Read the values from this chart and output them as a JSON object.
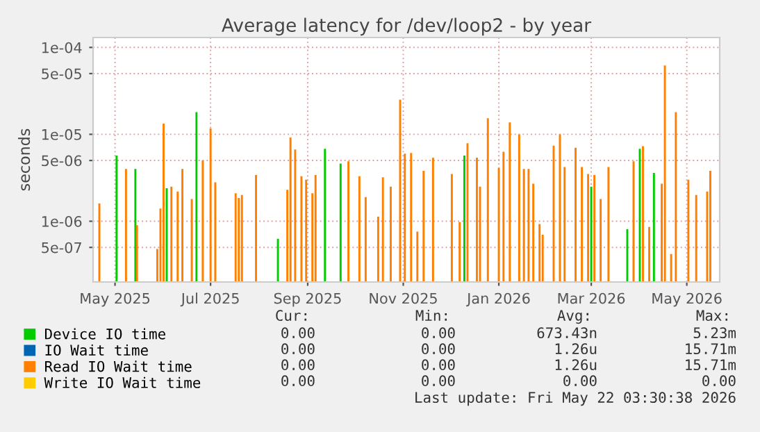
{
  "chart_data": {
    "type": "bar",
    "title": "Average latency for /dev/loop2 - by year",
    "ylabel": "seconds",
    "log": "y",
    "ylim": [
      2e-07,
      0.00013
    ],
    "yticks": [
      {
        "value": 0.0001,
        "label": "1e-04"
      },
      {
        "value": 5e-05,
        "label": "5e-05"
      },
      {
        "value": 1e-05,
        "label": "1e-05"
      },
      {
        "value": 5e-06,
        "label": "5e-06"
      },
      {
        "value": 1e-06,
        "label": "1e-06"
      },
      {
        "value": 5e-07,
        "label": "5e-07"
      }
    ],
    "xlim": [
      "2025-04-17",
      "2026-05-22"
    ],
    "xticks": [
      {
        "value": "2025-05-01",
        "label": "May 2025"
      },
      {
        "value": "2025-07-01",
        "label": "Jul 2025"
      },
      {
        "value": "2025-09-01",
        "label": "Sep 2025"
      },
      {
        "value": "2025-11-01",
        "label": "Nov 2025"
      },
      {
        "value": "2026-01-01",
        "label": "Jan 2026"
      },
      {
        "value": "2026-03-01",
        "label": "Mar 2026"
      },
      {
        "value": "2026-05-01",
        "label": "May 2026"
      }
    ],
    "grid": true,
    "legend": "bottom",
    "series": [
      {
        "name": "Device IO time",
        "color": "#00cc00",
        "x": [
          "2025-05-02",
          "2025-05-14",
          "2025-06-03",
          "2025-06-22",
          "2025-08-13",
          "2025-09-12",
          "2025-09-22",
          "2025-12-10",
          "2026-03-01",
          "2026-03-24",
          "2026-04-01",
          "2026-04-10"
        ],
        "values": [
          5.7e-06,
          4e-06,
          2.4e-06,
          1.8e-05,
          6.3e-07,
          6.8e-06,
          4.6e-06,
          5.7e-06,
          2.5e-06,
          8.1e-07,
          6.8e-06,
          3.6e-06
        ]
      },
      {
        "name": "IO Wait time",
        "color": "#0066b3"
      },
      {
        "name": "Read IO Wait time",
        "color": "#ff8000",
        "x": [
          "2025-04-21",
          "2025-05-08",
          "2025-05-15",
          "2025-05-28",
          "2025-05-30",
          "2025-06-01",
          "2025-06-06",
          "2025-06-10",
          "2025-06-13",
          "2025-06-19",
          "2025-06-26",
          "2025-07-01",
          "2025-07-04",
          "2025-07-17",
          "2025-07-19",
          "2025-07-21",
          "2025-07-30",
          "2025-08-19",
          "2025-08-21",
          "2025-08-24",
          "2025-08-28",
          "2025-08-31",
          "2025-09-04",
          "2025-09-06",
          "2025-09-27",
          "2025-10-04",
          "2025-10-08",
          "2025-10-16",
          "2025-10-19",
          "2025-10-24",
          "2025-10-30",
          "2025-11-02",
          "2025-11-06",
          "2025-11-10",
          "2025-11-14",
          "2025-11-20",
          "2025-12-02",
          "2025-12-07",
          "2025-12-12",
          "2025-12-18",
          "2025-12-20",
          "2025-12-25",
          "2026-01-01",
          "2026-01-04",
          "2026-01-08",
          "2026-01-14",
          "2026-01-17",
          "2026-01-20",
          "2026-01-23",
          "2026-01-27",
          "2026-01-29",
          "2026-02-05",
          "2026-02-09",
          "2026-02-12",
          "2026-02-19",
          "2026-02-23",
          "2026-02-27",
          "2026-03-03",
          "2026-03-07",
          "2026-03-12",
          "2026-03-28",
          "2026-04-03",
          "2026-04-07",
          "2026-04-15",
          "2026-04-17",
          "2026-04-21",
          "2026-04-24",
          "2026-05-02",
          "2026-05-07",
          "2026-05-14",
          "2026-05-16"
        ],
        "values": [
          1.6e-06,
          4e-06,
          9e-07,
          4.8e-07,
          1.4e-06,
          1.33e-05,
          2.5e-06,
          2.2e-06,
          4e-06,
          1.8e-06,
          5e-06,
          1.17e-05,
          2.8e-06,
          2.1e-06,
          1.85e-06,
          2e-06,
          3.4e-06,
          2.3e-06,
          9.2e-06,
          6.7e-06,
          3.3e-06,
          3e-06,
          2.1e-06,
          3.4e-06,
          4.9e-06,
          3.3e-06,
          1.9e-06,
          1.13e-06,
          3.2e-06,
          2.5e-06,
          2.5e-05,
          6e-06,
          6.1e-06,
          7.6e-07,
          3.8e-06,
          5.4e-06,
          3.5e-06,
          9.8e-07,
          7.9e-06,
          5.4e-06,
          2.5e-06,
          1.53e-05,
          4.1e-06,
          6.3e-06,
          1.37e-05,
          1e-05,
          4e-06,
          4e-06,
          2.7e-06,
          9.3e-07,
          7e-07,
          7.4e-06,
          1e-05,
          4.2e-06,
          7e-06,
          4.2e-06,
          3.5e-06,
          3.4e-06,
          1.8e-06,
          4.2e-06,
          4.9e-06,
          7.3e-06,
          8.6e-07,
          2.7e-06,
          6.2e-05,
          4.2e-07,
          1.8e-05,
          3e-06,
          2e-06,
          2.2e-06,
          3.8e-06
        ]
      },
      {
        "name": "Write IO Wait time",
        "color": "#ffcc00"
      }
    ],
    "annotations": [
      "Cur:",
      "Min:",
      "Avg:",
      "Max:",
      "0.00",
      "0.00",
      "673.43n",
      "5.23m",
      "0.00",
      "0.00",
      "1.26u",
      "15.71m",
      "0.00",
      "0.00",
      "1.26u",
      "15.71m",
      "0.00",
      "0.00",
      "0.00",
      "0.00",
      "Last update: Fri May 22 03:30:38 2026"
    ]
  }
}
